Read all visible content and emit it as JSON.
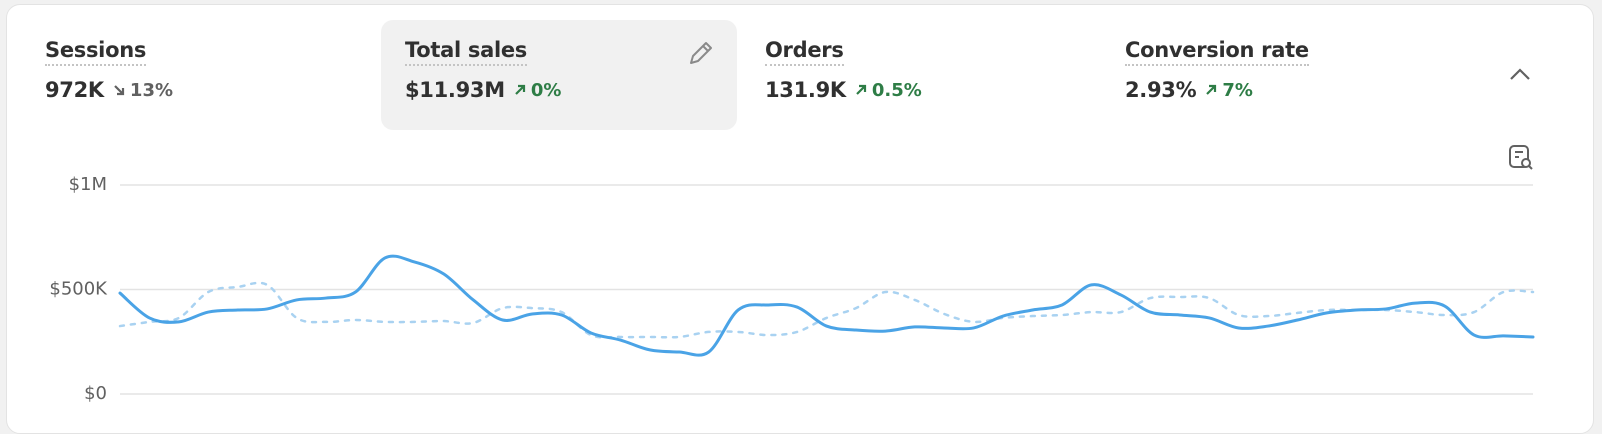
{
  "metrics": [
    {
      "label": "Sessions",
      "value": "972K",
      "change": "13%",
      "direction": "down",
      "selected": false
    },
    {
      "label": "Total sales",
      "value": "$11.93M",
      "change": "0%",
      "direction": "up",
      "selected": true
    },
    {
      "label": "Orders",
      "value": "131.9K",
      "change": "0.5%",
      "direction": "up",
      "selected": false
    },
    {
      "label": "Conversion rate",
      "value": "2.93%",
      "change": "7%",
      "direction": "up",
      "selected": false
    }
  ],
  "chart_data": {
    "type": "line",
    "ylim": [
      0,
      1000000
    ],
    "yticks": [
      {
        "value": 0,
        "label": "$0"
      },
      {
        "value": 500000,
        "label": "$500K"
      },
      {
        "value": 1000000,
        "label": "$1M"
      }
    ],
    "grid": true,
    "series": [
      {
        "color": "#4aa3e6",
        "dashed": false,
        "values": [
          483000,
          364000,
          345000,
          392000,
          402000,
          407000,
          450000,
          459000,
          488000,
          651000,
          632000,
          574000,
          450000,
          354000,
          383000,
          378000,
          292000,
          258000,
          211000,
          201000,
          201000,
          402000,
          426000,
          416000,
          325000,
          306000,
          301000,
          321000,
          316000,
          316000,
          373000,
          402000,
          426000,
          522000,
          474000,
          392000,
          378000,
          364000,
          316000,
          325000,
          354000,
          388000,
          402000,
          407000,
          435000,
          421000,
          282000,
          278000,
          273000
        ]
      },
      {
        "color": "#a9d2f1",
        "dashed": true,
        "values": [
          325000,
          345000,
          364000,
          488000,
          512000,
          522000,
          364000,
          345000,
          354000,
          345000,
          345000,
          349000,
          340000,
          411000,
          411000,
          392000,
          282000,
          273000,
          273000,
          273000,
          297000,
          297000,
          282000,
          297000,
          364000,
          411000,
          488000,
          450000,
          383000,
          345000,
          364000,
          373000,
          378000,
          392000,
          392000,
          459000,
          464000,
          459000,
          378000,
          373000,
          388000,
          402000,
          402000,
          402000,
          392000,
          378000,
          392000,
          488000,
          488000
        ]
      }
    ]
  }
}
